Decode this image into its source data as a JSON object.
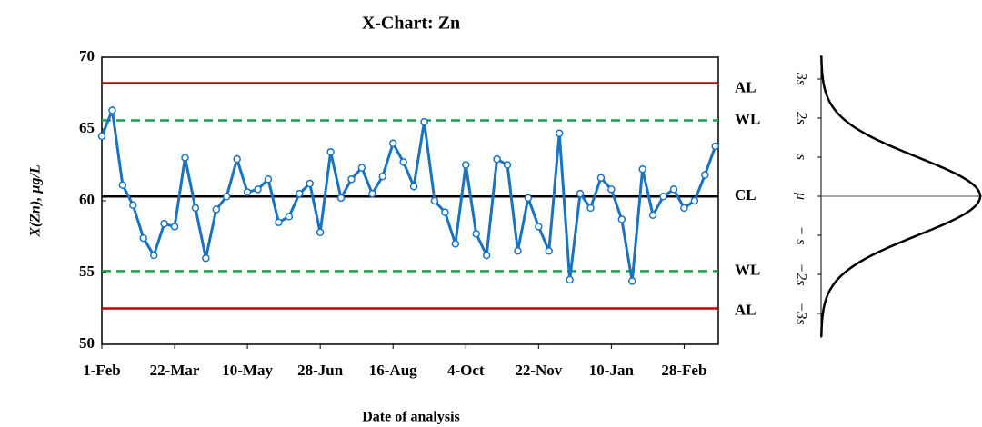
{
  "chart_data": {
    "type": "line",
    "title": "X-Chart: Zn",
    "x_label": "Date of analysis",
    "y_label": "X(Zn), µg/L",
    "x": [
      0,
      7,
      14,
      21,
      28,
      35,
      42,
      49,
      56,
      63,
      70,
      77,
      84,
      91,
      98,
      105,
      112,
      119,
      126,
      133,
      140,
      147,
      154,
      161,
      168,
      175,
      182,
      189,
      196,
      203,
      210,
      217,
      224,
      231,
      238,
      245,
      252,
      259,
      266,
      273,
      280,
      287,
      294,
      301,
      308,
      315,
      322,
      329,
      336,
      343,
      350,
      357,
      364,
      371,
      378,
      385,
      392,
      399,
      406,
      413
    ],
    "series": [
      {
        "name": "X(Zn)",
        "color": "#1a73c0",
        "values": [
          64.5,
          66.3,
          61.1,
          59.7,
          57.4,
          56.2,
          58.4,
          58.2,
          63.0,
          59.5,
          56.0,
          59.4,
          60.3,
          62.9,
          60.6,
          60.8,
          61.5,
          58.5,
          58.9,
          60.5,
          61.2,
          57.8,
          63.4,
          60.2,
          61.5,
          62.3,
          60.5,
          61.7,
          64.0,
          62.7,
          61.0,
          65.5,
          60.0,
          59.2,
          57.0,
          62.5,
          57.7,
          56.2,
          62.9,
          62.5,
          56.5,
          60.2,
          58.2,
          56.5,
          64.7,
          54.5,
          60.5,
          59.5,
          61.6,
          60.8,
          58.7,
          54.4,
          62.2,
          59.0,
          60.3,
          60.8,
          59.5,
          60.0,
          61.8,
          63.8
        ]
      }
    ],
    "limits": [
      {
        "label": "AL",
        "value": 68.2,
        "color": "#c00000",
        "dashed": false
      },
      {
        "label": "WL",
        "value": 65.6,
        "color": "#1fa04a",
        "dashed": true
      },
      {
        "label": "CL",
        "value": 60.3,
        "color": "#000000",
        "dashed": false
      },
      {
        "label": "WL",
        "value": 55.1,
        "color": "#1fa04a",
        "dashed": true
      },
      {
        "label": "AL",
        "value": 52.5,
        "color": "#c00000",
        "dashed": false
      }
    ],
    "xlim": [
      0,
      415
    ],
    "xticks": [
      {
        "value": 0,
        "label": "1-Feb"
      },
      {
        "value": 49,
        "label": "22-Mar"
      },
      {
        "value": 98,
        "label": "10-May"
      },
      {
        "value": 147,
        "label": "28-Jun"
      },
      {
        "value": 196,
        "label": "16-Aug"
      },
      {
        "value": 245,
        "label": "4-Oct"
      },
      {
        "value": 294,
        "label": "22-Nov"
      },
      {
        "value": 343,
        "label": "10-Jan"
      },
      {
        "value": 392,
        "label": "28-Feb"
      }
    ],
    "ylim": [
      50,
      70
    ],
    "yticks": [
      50,
      55,
      60,
      65,
      70
    ],
    "sigma_labels": [
      "3s",
      "2s",
      "s",
      "μ",
      "− s",
      "−2s",
      "−3s"
    ]
  }
}
